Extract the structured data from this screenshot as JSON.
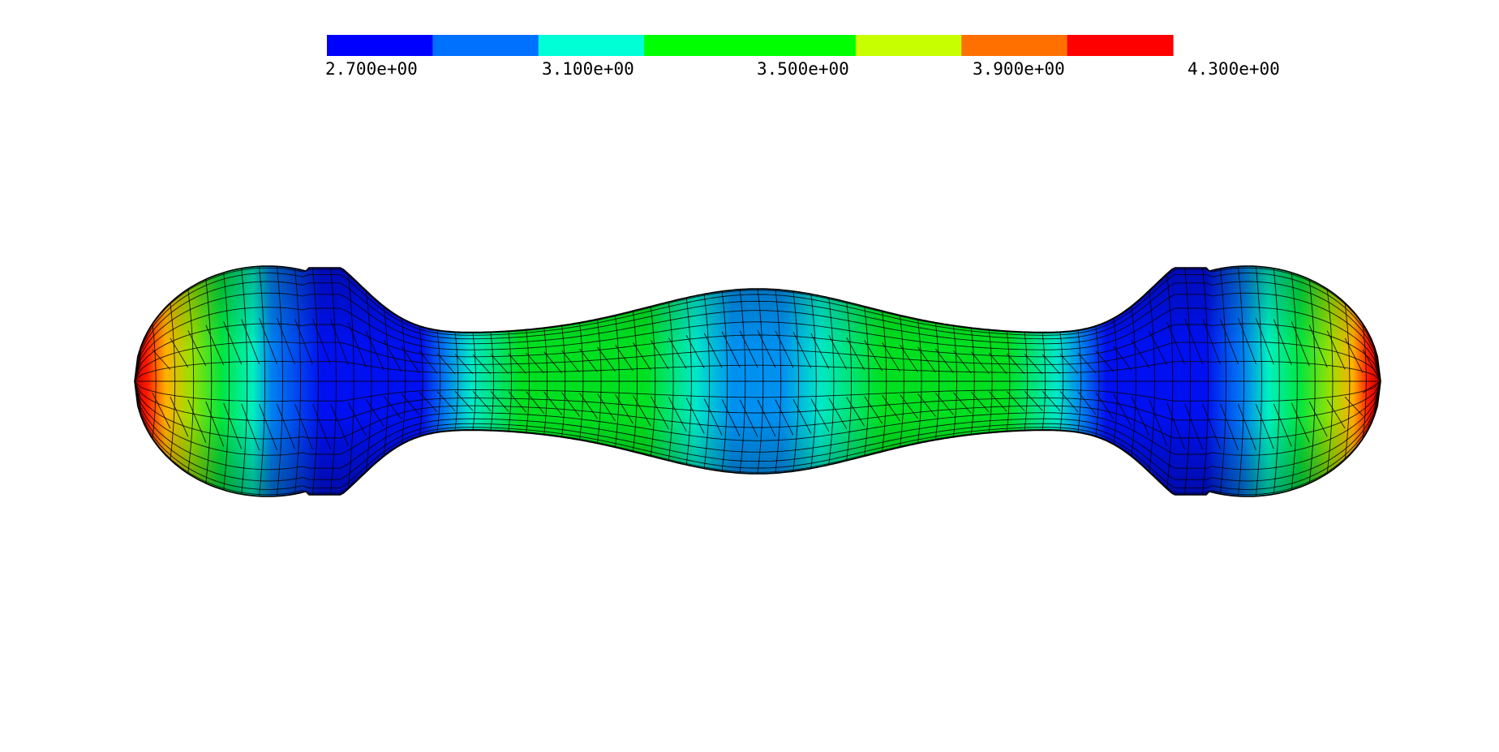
{
  "colorbar": {
    "segments": [
      {
        "color": "#0000ff"
      },
      {
        "color": "#0070ff"
      },
      {
        "color": "#00ffd5"
      },
      {
        "color": "#00ff00"
      },
      {
        "color": "#00ff00"
      },
      {
        "color": "#c8ff00"
      },
      {
        "color": "#ff7000"
      },
      {
        "color": "#ff0000"
      }
    ],
    "labels": [
      "2.700e+00",
      "3.100e+00",
      "3.500e+00",
      "3.900e+00",
      "4.300e+00"
    ]
  },
  "model": {
    "band_colors": [
      "#ff0000",
      "#ff7a00",
      "#c8e600",
      "#00ff00",
      "#00ffd5",
      "#0070ff",
      "#0000ff"
    ],
    "mesh_color": "#000000"
  }
}
